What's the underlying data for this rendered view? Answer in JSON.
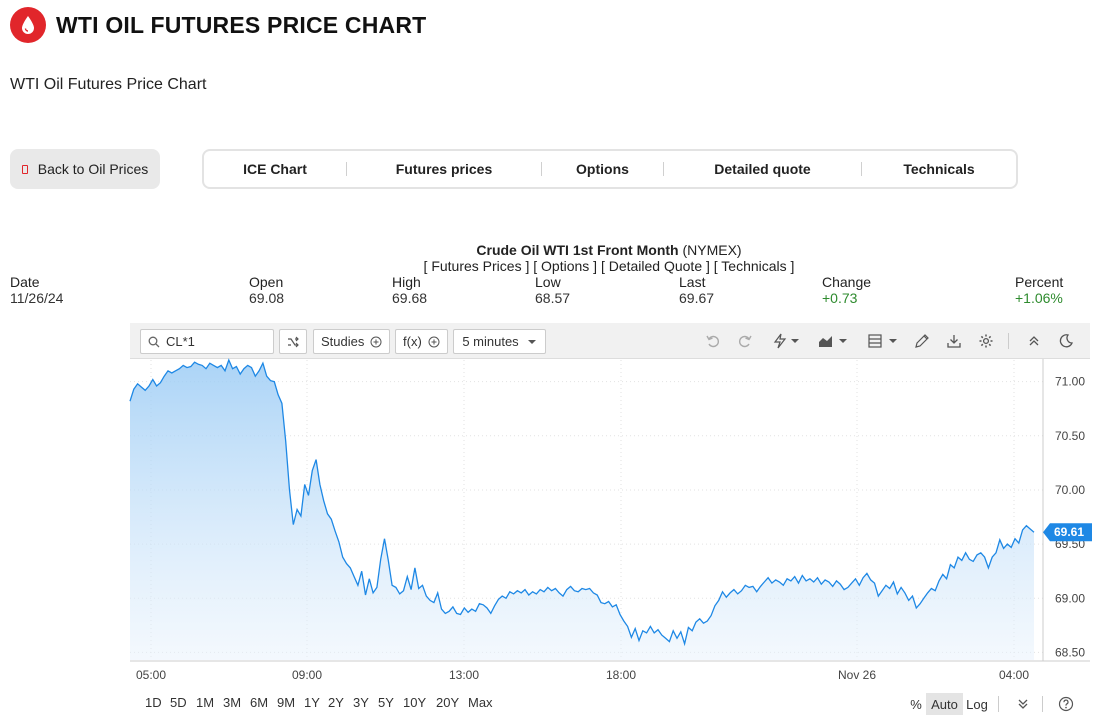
{
  "header": {
    "title": "WTI OIL FUTURES PRICE CHART",
    "subtitle": "WTI Oil Futures Price Chart"
  },
  "back_button": {
    "label": "Back to Oil Prices"
  },
  "tabs": [
    {
      "label": "ICE Chart"
    },
    {
      "label": "Futures prices"
    },
    {
      "label": "Options"
    },
    {
      "label": "Detailed quote"
    },
    {
      "label": "Technicals"
    }
  ],
  "instrument": {
    "name": "Crude Oil WTI 1st Front Month",
    "exchange": "(NYMEX)",
    "links": "[ Futures Prices ] [ Options ] [ Detailed Quote ] [ Technicals ]"
  },
  "quote": {
    "date_label": "Date",
    "date": "11/26/24",
    "open_label": "Open",
    "open": "69.08",
    "high_label": "High",
    "high": "69.68",
    "low_label": "Low",
    "low": "68.57",
    "last_label": "Last",
    "last": "69.67",
    "change_label": "Change",
    "change": "+0.73",
    "percent_label": "Percent",
    "percent": "+1.06%"
  },
  "toolbar": {
    "search_value": "CL*1",
    "studies_label": "Studies",
    "fx_label": "f(x)",
    "interval_label": "5 minutes"
  },
  "range_buttons": [
    "1D",
    "5D",
    "1M",
    "3M",
    "6M",
    "9M",
    "1Y",
    "2Y",
    "3Y",
    "5Y",
    "10Y",
    "20Y",
    "Max"
  ],
  "scale_options": {
    "percent": "%",
    "auto": "Auto",
    "log": "Log"
  },
  "colors": {
    "brand": "#e1262b",
    "line": "#1e88e5",
    "badge": "#1e88e5",
    "positive": "#2e8b2e"
  },
  "chart_data": {
    "type": "area",
    "x_ticks": [
      "05:00",
      "09:00",
      "13:00",
      "18:00",
      "Nov 26",
      "04:00"
    ],
    "y_ticks": [
      "71.00",
      "70.50",
      "70.00",
      "69.50",
      "69.00",
      "68.50"
    ],
    "ylim": [
      68.43,
      71.2
    ],
    "last_value_label": "69.61",
    "grid": true,
    "series": [
      {
        "values": [
          70.82,
          70.93,
          70.98,
          70.95,
          70.92,
          70.96,
          71.02,
          70.96,
          70.99,
          71.05,
          71.1,
          71.08,
          71.1,
          71.12,
          71.15,
          71.13,
          71.14,
          71.18,
          71.16,
          71.15,
          71.12,
          71.17,
          71.15,
          71.13,
          71.15,
          71.1,
          71.2,
          71.12,
          71.14,
          71.07,
          71.12,
          71.15,
          71.13,
          71.05,
          71.1,
          71.17,
          71.05,
          71.01,
          71.0,
          70.88,
          70.8,
          70.45,
          70.0,
          69.68,
          69.82,
          69.76,
          70.05,
          69.95,
          70.18,
          70.28,
          70.05,
          69.9,
          69.78,
          69.73,
          69.62,
          69.52,
          69.38,
          69.32,
          69.28,
          69.2,
          69.12,
          69.25,
          69.03,
          69.18,
          69.05,
          69.1,
          69.36,
          69.55,
          69.35,
          69.12,
          69.1,
          69.04,
          69.07,
          69.2,
          69.08,
          69.28,
          69.09,
          69.12,
          69.02,
          68.98,
          68.96,
          69.05,
          68.9,
          68.86,
          68.88,
          68.92,
          68.86,
          68.85,
          68.91,
          68.87,
          68.9,
          68.88,
          68.95,
          68.94,
          68.91,
          68.86,
          68.93,
          68.99,
          69.02,
          69.0,
          69.06,
          69.04,
          69.07,
          69.05,
          69.08,
          69.03,
          69.06,
          69.04,
          69.08,
          69.06,
          69.1,
          69.07,
          69.09,
          69.05,
          69.02,
          69.08,
          69.11,
          69.07,
          69.06,
          69.09,
          69.08,
          69.09,
          69.05,
          69.03,
          68.96,
          68.95,
          68.97,
          68.92,
          68.94,
          68.85,
          68.79,
          68.74,
          68.64,
          68.72,
          68.61,
          68.7,
          68.68,
          68.74,
          68.68,
          68.71,
          68.66,
          68.63,
          68.6,
          68.7,
          68.63,
          68.69,
          68.58,
          68.73,
          68.7,
          68.78,
          68.81,
          68.77,
          68.79,
          68.84,
          68.93,
          68.98,
          69.06,
          69.01,
          69.05,
          69.08,
          69.04,
          69.07,
          69.12,
          69.1,
          69.11,
          69.06,
          69.11,
          69.15,
          69.19,
          69.14,
          69.17,
          69.15,
          69.12,
          69.18,
          69.16,
          69.2,
          69.14,
          69.21,
          69.16,
          69.18,
          69.15,
          69.19,
          69.13,
          69.17,
          69.15,
          69.11,
          69.16,
          69.13,
          69.08,
          69.1,
          69.14,
          69.18,
          69.12,
          69.19,
          69.23,
          69.17,
          69.14,
          69.02,
          69.07,
          69.12,
          69.09,
          69.15,
          69.04,
          69.1,
          69.05,
          68.98,
          69.02,
          68.91,
          68.95,
          69.0,
          69.05,
          69.09,
          69.07,
          69.16,
          69.22,
          69.18,
          69.31,
          69.28,
          69.38,
          69.35,
          69.42,
          69.36,
          69.34,
          69.4,
          69.42,
          69.38,
          69.28,
          69.38,
          69.42,
          69.54,
          69.46,
          69.5,
          69.47,
          69.55,
          69.51,
          69.63,
          69.67,
          69.64,
          69.61
        ]
      }
    ]
  }
}
